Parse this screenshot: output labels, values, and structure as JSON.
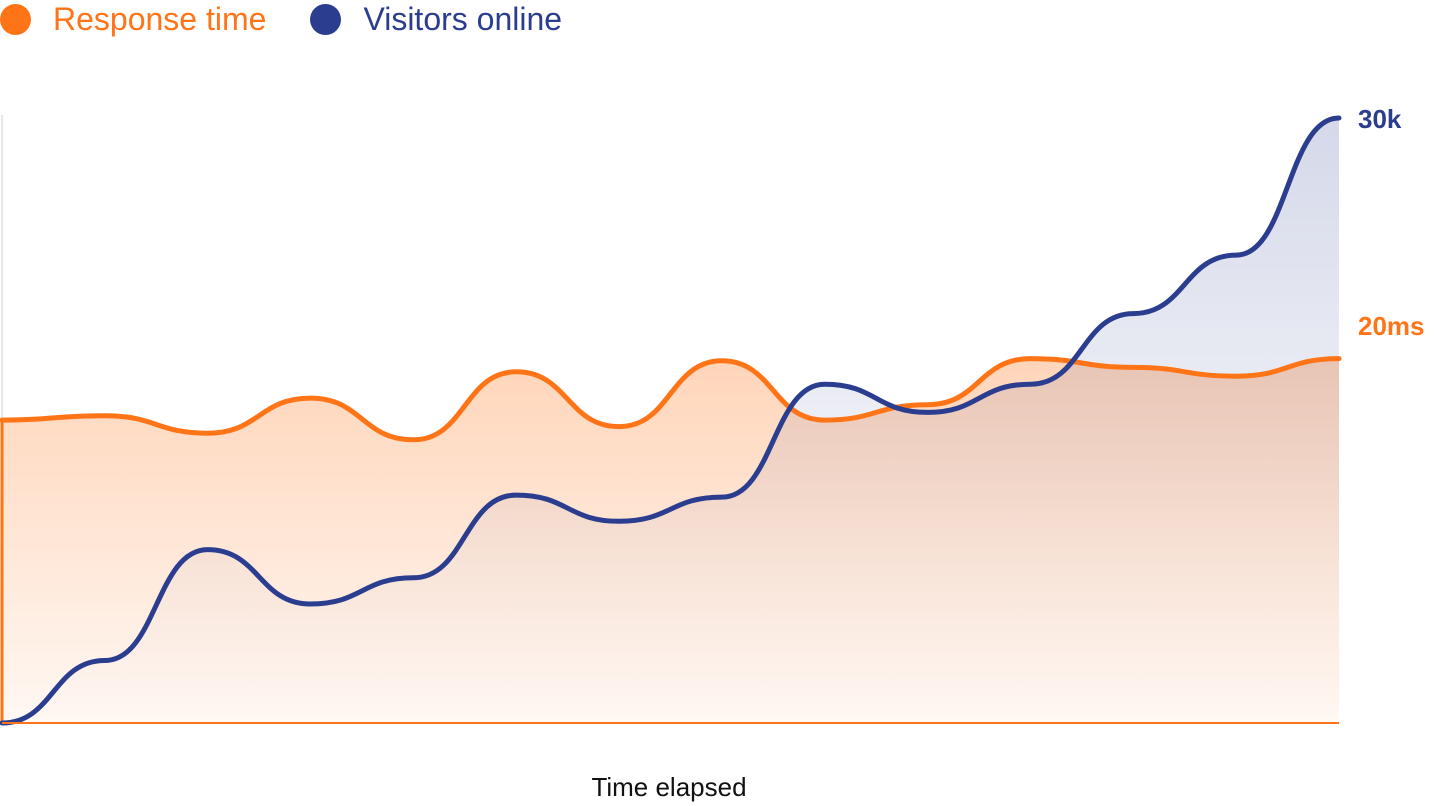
{
  "legend": {
    "items": [
      {
        "label": "Response time",
        "color": "#ff7417"
      },
      {
        "label": "Visitors online",
        "color": "#2b3d8f"
      }
    ]
  },
  "chart_data": {
    "type": "area",
    "title": "",
    "xlabel": "Time elapsed",
    "ylabel": "",
    "grid": false,
    "legend_position": "top-left",
    "x": [
      0,
      1,
      2,
      3,
      4,
      5,
      6,
      7,
      8,
      9,
      10,
      11,
      12,
      13
    ],
    "series": [
      {
        "name": "Response time",
        "color": "#ff7417",
        "end_label": "20ms",
        "values": [
          13.8,
          14.0,
          13.2,
          14.8,
          12.9,
          16.0,
          13.5,
          16.5,
          13.8,
          14.5,
          16.6,
          16.2,
          15.8,
          16.6
        ]
      },
      {
        "name": "Visitors online",
        "color": "#2b3d8f",
        "end_label": "30k",
        "values": [
          0,
          3100,
          8600,
          5900,
          7200,
          11300,
          10000,
          11200,
          16800,
          15400,
          16800,
          20300,
          23200,
          30000
        ]
      }
    ],
    "y_axes": [
      {
        "series": "Visitors online",
        "max_label": "30k",
        "range": [
          0,
          30000
        ]
      },
      {
        "series": "Response time",
        "max_label": "20ms",
        "range": [
          0,
          27.56
        ]
      }
    ],
    "xlim": [
      0,
      13
    ]
  }
}
